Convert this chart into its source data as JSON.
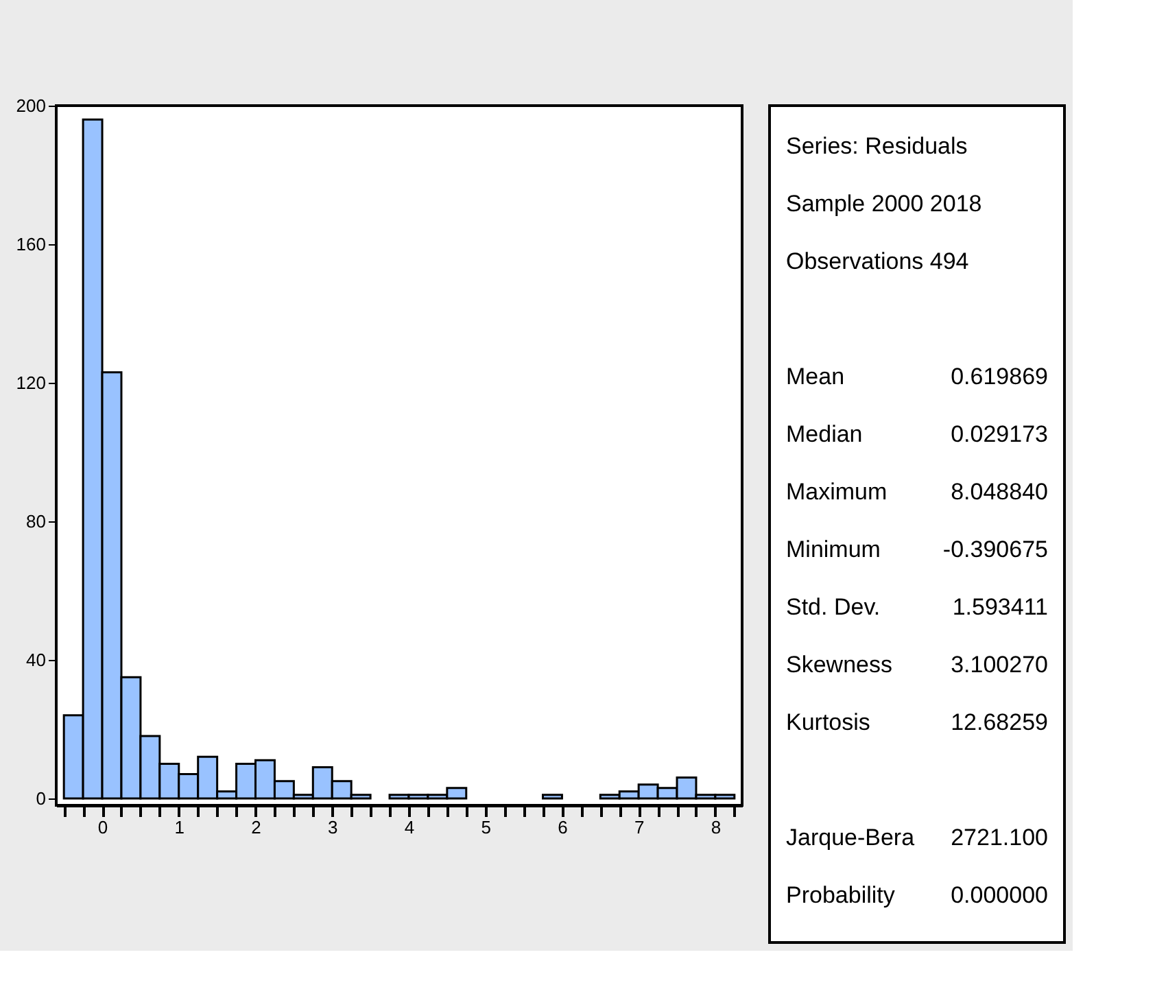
{
  "chart_data": [
    {
      "type": "histogram",
      "color": "#99c2ff",
      "bins": [
        -0.5,
        -0.25,
        0,
        0.25,
        0.5,
        0.75,
        1,
        1.25,
        1.5,
        1.75,
        2,
        2.25,
        2.5,
        2.75,
        3,
        3.25,
        3.5,
        3.75,
        4,
        4.25,
        4.5,
        4.75,
        5,
        5.25,
        5.5,
        5.75,
        6,
        6.25,
        6.5,
        6.75,
        7,
        7.25,
        7.5,
        7.75,
        8,
        8.25
      ],
      "values": [
        24,
        196,
        123,
        35,
        18,
        10,
        7,
        12,
        2,
        10,
        11,
        5,
        1,
        9,
        5,
        1,
        0,
        1,
        1,
        1,
        3,
        0,
        0,
        0,
        0,
        1,
        0,
        0,
        1,
        2,
        4,
        3,
        6,
        1,
        1
      ],
      "xlim": [
        -0.6,
        8.35
      ],
      "ylim": [
        -2,
        200
      ],
      "xticks": [
        {
          "value": -0.5,
          "label": null
        },
        {
          "value": -0.25,
          "label": null
        },
        0,
        {
          "value": 0.25,
          "label": null
        },
        {
          "value": 0.5,
          "label": null
        },
        {
          "value": 0.75,
          "label": null
        },
        1,
        {
          "value": 1.25,
          "label": null
        },
        {
          "value": 1.5,
          "label": null
        },
        {
          "value": 1.75,
          "label": null
        },
        2,
        {
          "value": 2.25,
          "label": null
        },
        {
          "value": 2.5,
          "label": null
        },
        {
          "value": 2.75,
          "label": null
        },
        3,
        {
          "value": 3.25,
          "label": null
        },
        {
          "value": 3.5,
          "label": null
        },
        {
          "value": 3.75,
          "label": null
        },
        4,
        {
          "value": 4.25,
          "label": null
        },
        {
          "value": 4.5,
          "label": null
        },
        {
          "value": 4.75,
          "label": null
        },
        5,
        {
          "value": 5.25,
          "label": null
        },
        {
          "value": 5.5,
          "label": null
        },
        {
          "value": 5.75,
          "label": null
        },
        6,
        {
          "value": 6.25,
          "label": null
        },
        {
          "value": 6.5,
          "label": null
        },
        {
          "value": 6.75,
          "label": null
        },
        7,
        {
          "value": 7.25,
          "label": null
        },
        {
          "value": 7.5,
          "label": null
        },
        {
          "value": 7.75,
          "label": null
        },
        8,
        {
          "value": 8.25,
          "label": null
        }
      ],
      "yticks": [
        0,
        40,
        80,
        120,
        160,
        200
      ],
      "grid": false
    },
    {
      "type": "other",
      "annotations": [
        "Series: Residuals",
        "Sample 2000 2018",
        "Observations 494",
        "Mean",
        "0.619869",
        "Median",
        "0.029173",
        "Maximum",
        "8.048840",
        "Minimum",
        "-0.390675",
        "Std. Dev.",
        "1.593411",
        "Skewness",
        "3.100270",
        "Kurtosis",
        "12.68259",
        "Jarque-Bera",
        "2721.100",
        "Probability",
        "0.000000"
      ]
    }
  ]
}
